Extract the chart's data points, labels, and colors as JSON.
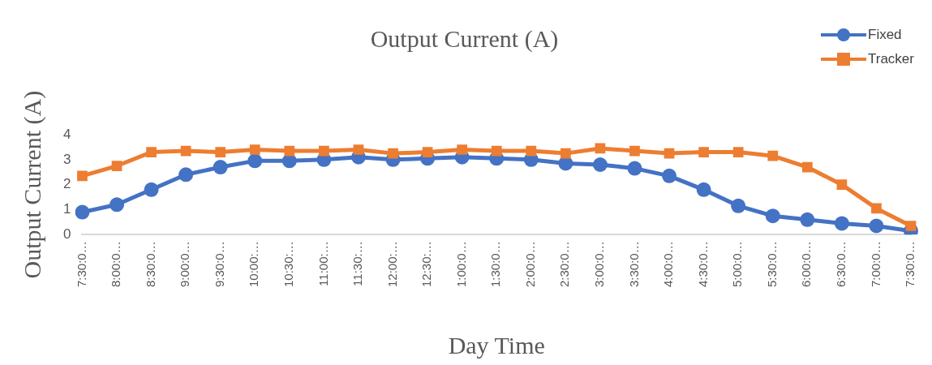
{
  "chart_data": {
    "type": "line",
    "title": "Output Current (A)",
    "xlabel": "Day Time",
    "ylabel": "Output Current (A)",
    "categories": [
      "7:30:0…",
      "8:00:0…",
      "8:30:0…",
      "9:00:0…",
      "9:30:0…",
      "10:00:…",
      "10:30:…",
      "11:00:…",
      "11:30:…",
      "12:00:…",
      "12:30:…",
      "1:00:0…",
      "1:30:0…",
      "2:00:0…",
      "2:30:0…",
      "3:00:0…",
      "3:30:0…",
      "4:00:0…",
      "4:30:0…",
      "5:00:0…",
      "5:30:0…",
      "6:00:0…",
      "6:30:0…",
      "7:00:0…",
      "7:30:0…"
    ],
    "series": [
      {
        "name": "Fixed",
        "color": "#4472c4",
        "marker": "circle",
        "values": [
          0.9,
          1.2,
          1.8,
          2.4,
          2.7,
          2.95,
          2.95,
          3.0,
          3.1,
          3.0,
          3.05,
          3.1,
          3.05,
          3.0,
          2.85,
          2.8,
          2.65,
          2.35,
          1.8,
          1.15,
          0.75,
          0.6,
          0.45,
          0.35,
          0.15
        ]
      },
      {
        "name": "Tracker",
        "color": "#ed7d31",
        "marker": "square",
        "values": [
          2.35,
          2.75,
          3.3,
          3.35,
          3.3,
          3.4,
          3.35,
          3.35,
          3.4,
          3.25,
          3.3,
          3.4,
          3.35,
          3.35,
          3.25,
          3.45,
          3.35,
          3.25,
          3.3,
          3.3,
          3.15,
          2.7,
          2.0,
          1.05,
          0.35
        ]
      }
    ],
    "ylim": [
      0,
      4
    ],
    "yticks": [
      0,
      1,
      2,
      3,
      4
    ],
    "grid": false,
    "legend": "top right"
  }
}
